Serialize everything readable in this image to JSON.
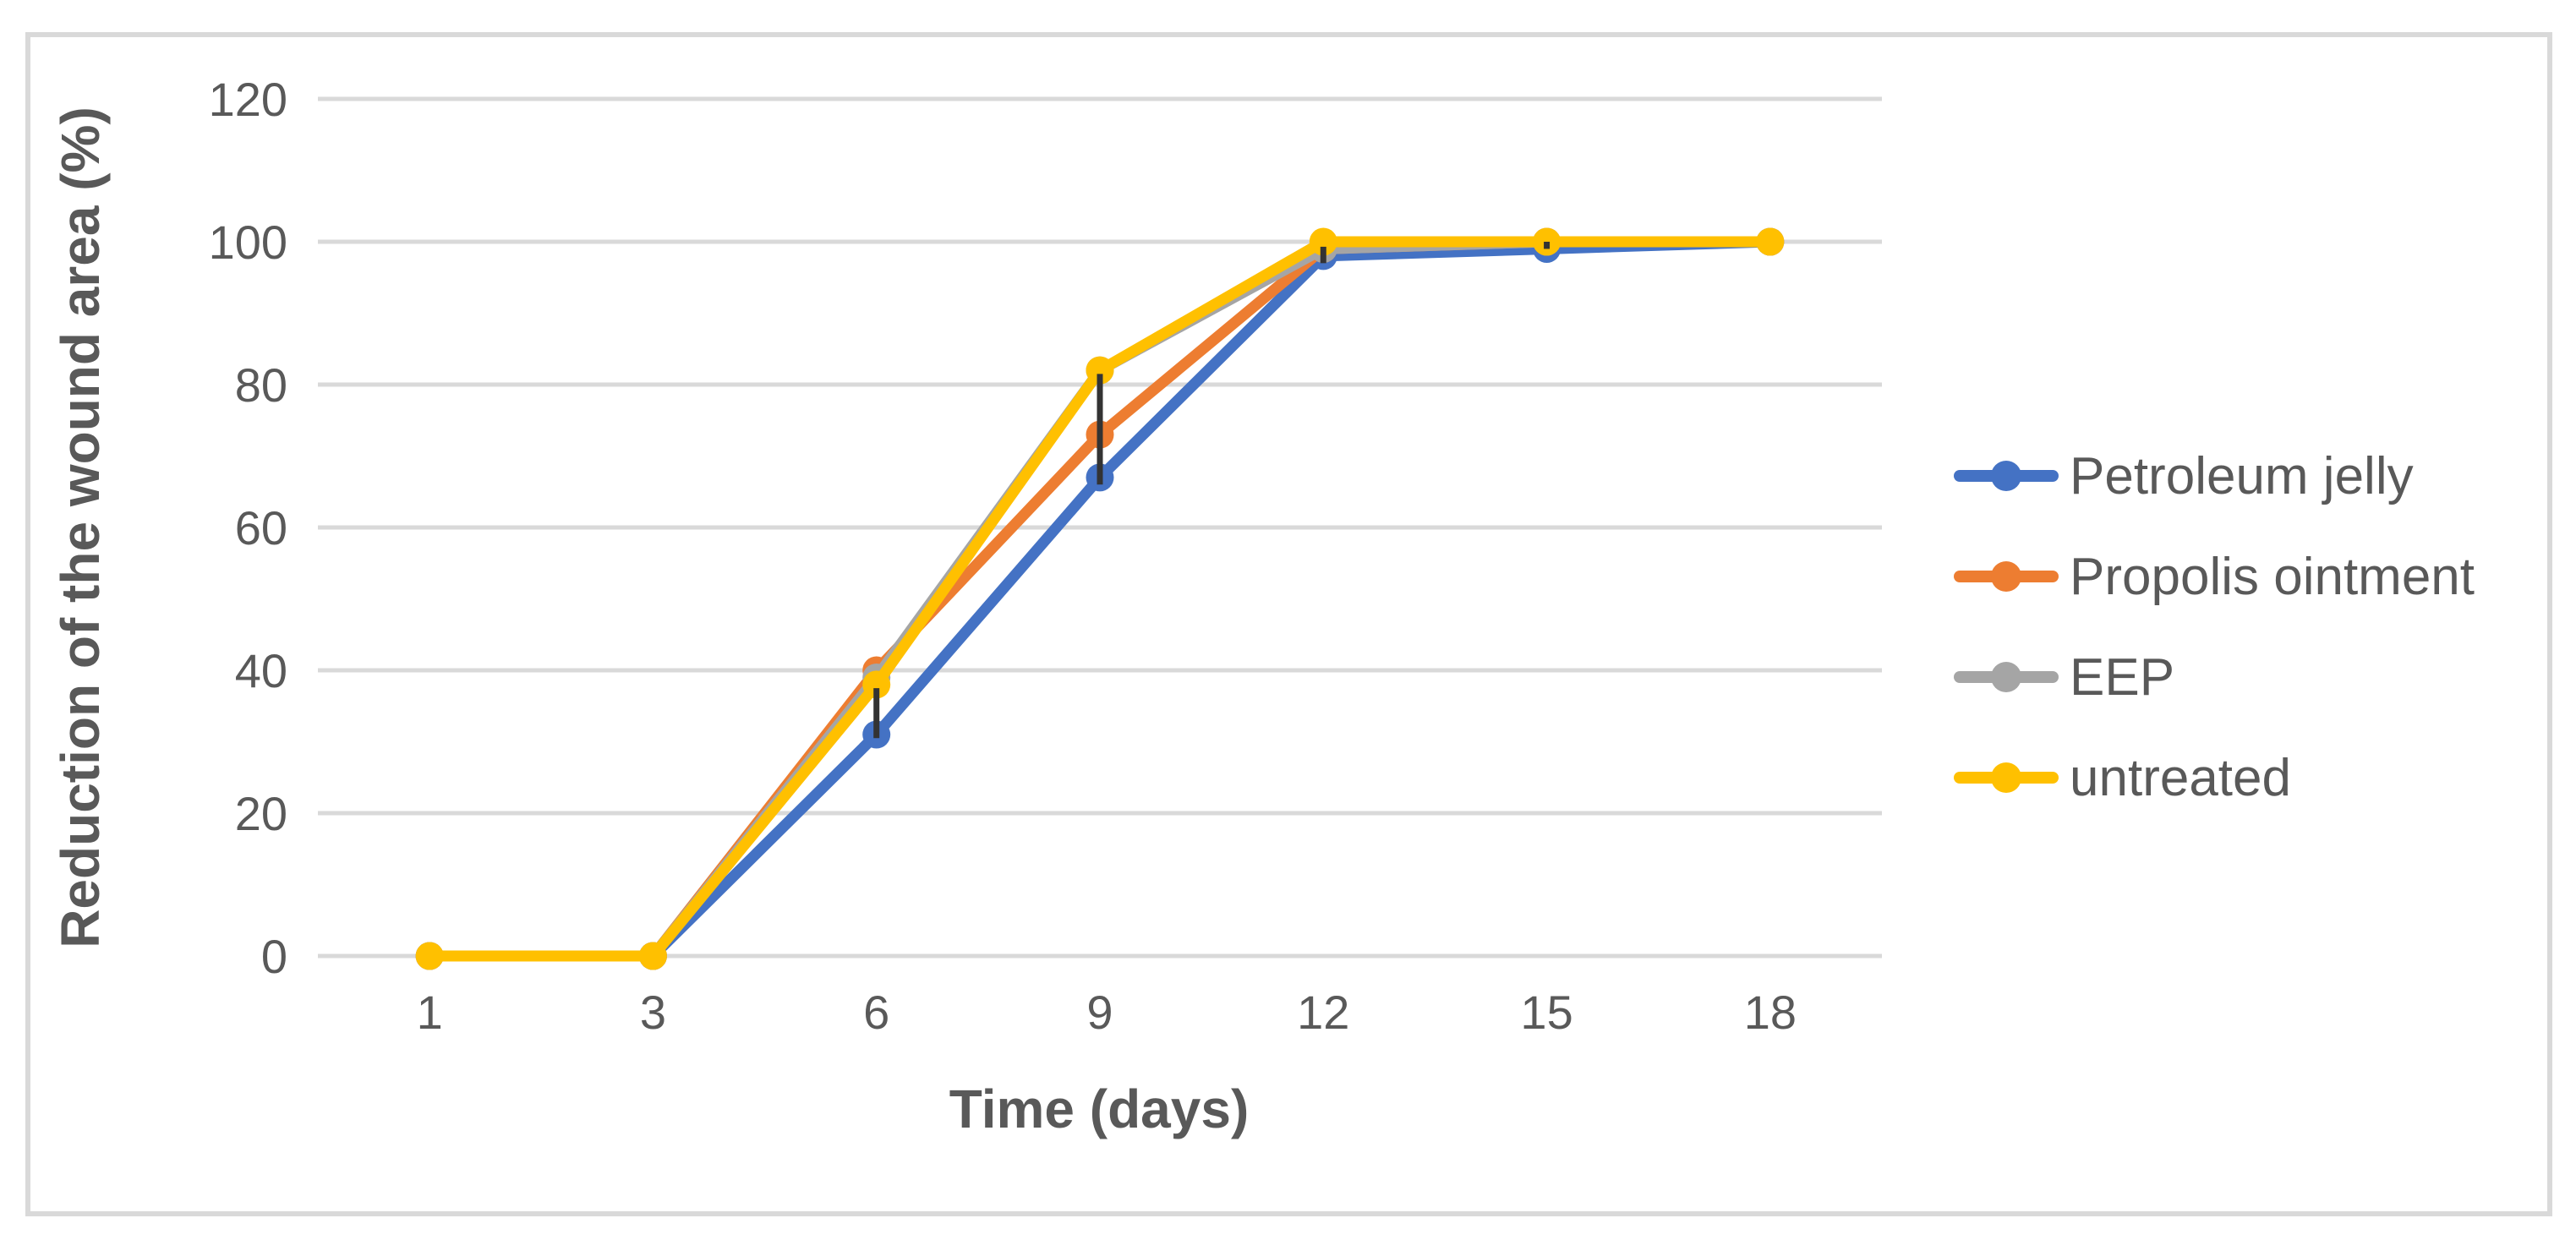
{
  "chart_data": {
    "type": "line",
    "title": "",
    "xlabel": "Time (days)",
    "ylabel": "Reduction of the wound area (%)",
    "categories": [
      1,
      3,
      6,
      9,
      12,
      15,
      18
    ],
    "yticks": [
      0,
      20,
      40,
      60,
      80,
      100,
      120
    ],
    "ylim": [
      0,
      120
    ],
    "grid": "horizontal",
    "legend_position": "right",
    "series": [
      {
        "name": "Petroleum jelly",
        "color": "#4472C4",
        "values": [
          0,
          0,
          31,
          67,
          98,
          99,
          100
        ]
      },
      {
        "name": "Propolis ointment",
        "color": "#ED7D31",
        "values": [
          0,
          0,
          40,
          73,
          99,
          100,
          100
        ]
      },
      {
        "name": "EEP",
        "color": "#A5A5A5",
        "values": [
          0,
          0,
          39,
          82,
          99,
          100,
          100
        ]
      },
      {
        "name": "untreated",
        "color": "#FFC000",
        "values": [
          0,
          0,
          38,
          82,
          100,
          100,
          100
        ]
      }
    ],
    "error_bars": [
      {
        "category": 6,
        "low": 30.5,
        "high": 37.5
      },
      {
        "category": 9,
        "low": 66.0,
        "high": 81.5
      },
      {
        "category": 12,
        "low": 97.0,
        "high": 99.3
      },
      {
        "category": 15,
        "low": 99.0,
        "high": 100.0
      }
    ],
    "colors": {
      "error_bar": "#333333",
      "gridline": "#D9D9D9",
      "text": "#595959",
      "frame_border": "#D9D9D9",
      "background": "#FFFFFF"
    }
  }
}
